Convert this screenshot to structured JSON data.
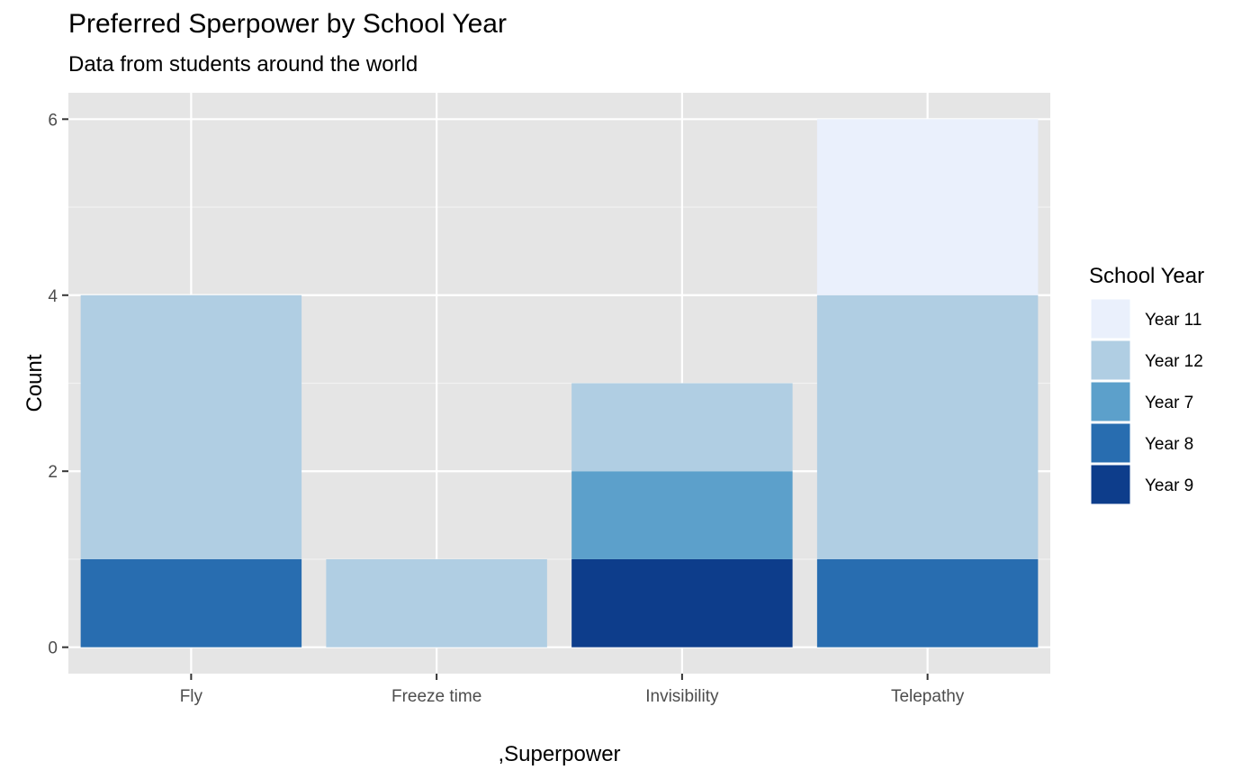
{
  "chart_data": {
    "type": "bar",
    "stacked": true,
    "title": "Preferred Sperpower by School Year",
    "subtitle": "Data from students around the world",
    "xlabel": ",Superpower",
    "ylabel": "Count",
    "categories": [
      "Fly",
      "Freeze time",
      "Invisibility",
      "Telepathy"
    ],
    "series": [
      {
        "name": "Year 11",
        "color": "#EAF0FC",
        "values": [
          0,
          0,
          0,
          2
        ]
      },
      {
        "name": "Year 12",
        "color": "#B0CEE3",
        "values": [
          3,
          1,
          1,
          3
        ]
      },
      {
        "name": "Year 7",
        "color": "#5CA0CB",
        "values": [
          0,
          0,
          1,
          0
        ]
      },
      {
        "name": "Year 8",
        "color": "#286DB0",
        "values": [
          1,
          0,
          0,
          1
        ]
      },
      {
        "name": "Year 9",
        "color": "#0D3D8B",
        "values": [
          0,
          0,
          1,
          0
        ]
      }
    ],
    "stack_order": [
      "Year 9",
      "Year 8",
      "Year 7",
      "Year 12",
      "Year 11"
    ],
    "ylim": [
      -0.3,
      6.3
    ],
    "yticks": [
      0,
      2,
      4,
      6
    ],
    "grid": true,
    "panel_background": "#E5E5E5",
    "legend": {
      "title": "School Year",
      "position": "right"
    }
  }
}
